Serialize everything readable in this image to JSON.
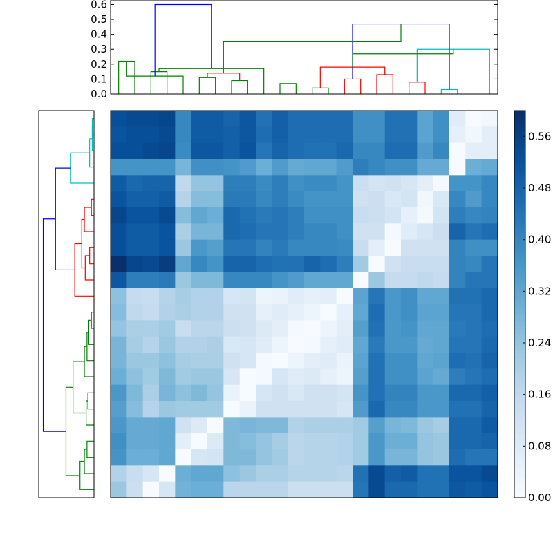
{
  "chart_data": [
    {
      "type": "dendrogram",
      "orientation": "top",
      "title": "",
      "xlabel": "",
      "ylabel": "",
      "ylim": [
        0,
        0.63
      ],
      "yticks": [
        "0.0",
        "0.1",
        "0.2",
        "0.3",
        "0.4",
        "0.5",
        "0.6"
      ],
      "leaf_count": 24,
      "cluster_colors": {
        "green": "#008000",
        "red": "#ff0000",
        "cyan": "#00bfbf",
        "root": "#0000ff"
      },
      "merges": [
        {
          "left": 0,
          "right": 1,
          "height": 0.22,
          "color": "green"
        },
        {
          "left": 2,
          "right": 3,
          "height": 0.15,
          "color": "green"
        },
        {
          "left": 5,
          "right": 6,
          "height": 0.11,
          "color": "green"
        },
        {
          "left": 7,
          "right": 8,
          "height": 0.09,
          "color": "green"
        },
        {
          "left": 10,
          "right": 11,
          "height": 0.07,
          "color": "green"
        },
        {
          "left": 12,
          "right": 13,
          "height": 0.04,
          "color": "green"
        },
        {
          "left": 16,
          "right": 17,
          "height": 0.13,
          "color": "red"
        },
        {
          "left": 18,
          "right": 19,
          "height": 0.08,
          "color": "red"
        },
        {
          "left": 20,
          "right": 21,
          "height": 0.03,
          "color": "cyan"
        },
        {
          "left": 14,
          "right": 15,
          "height": 0.1,
          "color": "red"
        },
        {
          "left": 26,
          "right": 27,
          "height": 0.14,
          "color": "red"
        },
        {
          "left": 29,
          "right": 30,
          "height": 0.18,
          "color": "red"
        },
        {
          "left": 31,
          "right": 23,
          "height": 0.3,
          "color": "cyan"
        },
        {
          "left": 32,
          "right": 33,
          "height": 0.47,
          "color": "root"
        },
        {
          "left": 24,
          "right": 4,
          "height": 0.12,
          "color": "green"
        },
        {
          "left": 25,
          "right": 9,
          "height": 0.17,
          "color": "green"
        },
        {
          "left": 35,
          "right": 36,
          "height": 0.27,
          "color": "green"
        },
        {
          "left": 34,
          "right": 37,
          "height": 0.35,
          "color": "green"
        },
        {
          "left": 38,
          "right": 39,
          "height": 0.6,
          "color": "root"
        }
      ]
    },
    {
      "type": "dendrogram",
      "orientation": "left",
      "title": "",
      "xlabel": "",
      "ylabel": "",
      "leaf_count": 24,
      "max_height": 0.6,
      "axis_labels_shown": false,
      "cluster_colors": {
        "green": "#008000",
        "red": "#ff0000",
        "cyan": "#00bfbf",
        "root": "#0000ff"
      },
      "merges": [
        {
          "left": 0,
          "right": 1,
          "height": 0.02,
          "color": "cyan"
        },
        {
          "left": 24,
          "right": 2,
          "height": 0.02,
          "color": "cyan"
        },
        {
          "left": 25,
          "right": 3,
          "height": 0.05,
          "color": "cyan"
        },
        {
          "left": 26,
          "right": 4,
          "height": 0.27,
          "color": "cyan"
        },
        {
          "left": 5,
          "right": 6,
          "height": 0.03,
          "color": "red"
        },
        {
          "left": 28,
          "right": 7,
          "height": 0.11,
          "color": "red"
        },
        {
          "left": 8,
          "right": 9,
          "height": 0.05,
          "color": "red"
        },
        {
          "left": 30,
          "right": 10,
          "height": 0.1,
          "color": "red"
        },
        {
          "left": 29,
          "right": 31,
          "height": 0.14,
          "color": "red"
        },
        {
          "left": 11,
          "right": 32,
          "height": 0.22,
          "color": "red"
        },
        {
          "left": 27,
          "right": 33,
          "height": 0.44,
          "color": "root"
        },
        {
          "left": 12,
          "right": 13,
          "height": 0.03,
          "color": "green"
        },
        {
          "left": 14,
          "right": 35,
          "height": 0.06,
          "color": "green"
        },
        {
          "left": 36,
          "right": 15,
          "height": 0.08,
          "color": "green"
        },
        {
          "left": 37,
          "right": 16,
          "height": 0.11,
          "color": "green"
        },
        {
          "left": 17,
          "right": 18,
          "height": 0.07,
          "color": "green"
        },
        {
          "left": 39,
          "right": 19,
          "height": 0.09,
          "color": "green"
        },
        {
          "left": 38,
          "right": 40,
          "height": 0.24,
          "color": "green"
        },
        {
          "left": 20,
          "right": 21,
          "height": 0.08,
          "color": "green"
        },
        {
          "left": 42,
          "right": 22,
          "height": 0.11,
          "color": "green"
        },
        {
          "left": 43,
          "right": 23,
          "height": 0.16,
          "color": "green"
        },
        {
          "left": 41,
          "right": 44,
          "height": 0.32,
          "color": "green"
        },
        {
          "left": 34,
          "right": 45,
          "height": 0.58,
          "color": "root"
        }
      ]
    },
    {
      "type": "heatmap",
      "title": "",
      "xlabel": "",
      "ylabel": "",
      "rows": 24,
      "cols": 24,
      "colormap": "Blues",
      "vmin": 0.0,
      "vmax": 0.6,
      "colormap_stops": [
        "#f7fbff",
        "#deebf7",
        "#c6dbef",
        "#9ecae1",
        "#6baed6",
        "#4292c6",
        "#2171b5",
        "#08519c",
        "#08306b"
      ],
      "values": [
        [
          0.53,
          0.54,
          0.54,
          0.55,
          0.4,
          0.5,
          0.5,
          0.48,
          0.51,
          0.45,
          0.49,
          0.46,
          0.46,
          0.46,
          0.46,
          0.38,
          0.38,
          0.45,
          0.45,
          0.33,
          0.38,
          0.07,
          0.0,
          0.02
        ],
        [
          0.52,
          0.53,
          0.53,
          0.54,
          0.4,
          0.5,
          0.5,
          0.49,
          0.51,
          0.46,
          0.49,
          0.46,
          0.46,
          0.46,
          0.46,
          0.38,
          0.38,
          0.45,
          0.45,
          0.33,
          0.38,
          0.05,
          0.02,
          0.06
        ],
        [
          0.53,
          0.53,
          0.54,
          0.55,
          0.39,
          0.51,
          0.51,
          0.49,
          0.52,
          0.44,
          0.48,
          0.46,
          0.45,
          0.45,
          0.47,
          0.4,
          0.4,
          0.46,
          0.46,
          0.35,
          0.4,
          0.0,
          0.06,
          0.06
        ],
        [
          0.37,
          0.37,
          0.37,
          0.37,
          0.28,
          0.38,
          0.38,
          0.37,
          0.35,
          0.3,
          0.35,
          0.31,
          0.32,
          0.32,
          0.35,
          0.42,
          0.4,
          0.38,
          0.38,
          0.31,
          0.31,
          0.0,
          0.3,
          0.31
        ],
        [
          0.5,
          0.47,
          0.48,
          0.48,
          0.16,
          0.24,
          0.24,
          0.42,
          0.42,
          0.39,
          0.42,
          0.38,
          0.39,
          0.39,
          0.37,
          0.13,
          0.11,
          0.12,
          0.1,
          0.06,
          0.01,
          0.37,
          0.37,
          0.4
        ],
        [
          0.52,
          0.49,
          0.49,
          0.5,
          0.18,
          0.26,
          0.26,
          0.43,
          0.43,
          0.4,
          0.42,
          0.39,
          0.37,
          0.37,
          0.37,
          0.12,
          0.13,
          0.09,
          0.11,
          0.02,
          0.09,
          0.4,
          0.35,
          0.4
        ],
        [
          0.55,
          0.52,
          0.52,
          0.54,
          0.26,
          0.32,
          0.3,
          0.47,
          0.45,
          0.43,
          0.44,
          0.42,
          0.38,
          0.38,
          0.38,
          0.14,
          0.13,
          0.11,
          0.05,
          0.01,
          0.11,
          0.42,
          0.4,
          0.41
        ],
        [
          0.53,
          0.5,
          0.5,
          0.52,
          0.2,
          0.28,
          0.28,
          0.47,
          0.46,
          0.44,
          0.44,
          0.42,
          0.4,
          0.4,
          0.38,
          0.12,
          0.12,
          0.01,
          0.07,
          0.1,
          0.13,
          0.48,
          0.44,
          0.46
        ],
        [
          0.53,
          0.5,
          0.5,
          0.52,
          0.23,
          0.36,
          0.34,
          0.44,
          0.44,
          0.41,
          0.43,
          0.4,
          0.4,
          0.4,
          0.39,
          0.14,
          0.06,
          0.0,
          0.12,
          0.12,
          0.12,
          0.41,
          0.38,
          0.38
        ],
        [
          0.6,
          0.55,
          0.54,
          0.57,
          0.32,
          0.4,
          0.37,
          0.48,
          0.48,
          0.46,
          0.45,
          0.45,
          0.48,
          0.46,
          0.42,
          0.22,
          0.0,
          0.12,
          0.14,
          0.14,
          0.14,
          0.41,
          0.4,
          0.44
        ],
        [
          0.51,
          0.42,
          0.42,
          0.43,
          0.23,
          0.27,
          0.27,
          0.4,
          0.4,
          0.4,
          0.37,
          0.35,
          0.32,
          0.32,
          0.32,
          0.0,
          0.23,
          0.15,
          0.15,
          0.16,
          0.15,
          0.41,
          0.44,
          0.44
        ],
        [
          0.25,
          0.15,
          0.14,
          0.18,
          0.21,
          0.19,
          0.19,
          0.1,
          0.11,
          0.03,
          0.04,
          0.07,
          0.05,
          0.06,
          0.0,
          0.33,
          0.44,
          0.36,
          0.38,
          0.32,
          0.32,
          0.45,
          0.45,
          0.47
        ],
        [
          0.26,
          0.16,
          0.15,
          0.19,
          0.2,
          0.19,
          0.19,
          0.12,
          0.12,
          0.05,
          0.07,
          0.05,
          0.03,
          0.0,
          0.05,
          0.32,
          0.46,
          0.36,
          0.38,
          0.33,
          0.33,
          0.44,
          0.44,
          0.47
        ],
        [
          0.24,
          0.2,
          0.2,
          0.22,
          0.14,
          0.17,
          0.17,
          0.13,
          0.12,
          0.08,
          0.06,
          0.01,
          0.0,
          0.03,
          0.06,
          0.34,
          0.45,
          0.36,
          0.37,
          0.32,
          0.32,
          0.43,
          0.44,
          0.46
        ],
        [
          0.28,
          0.21,
          0.18,
          0.23,
          0.19,
          0.19,
          0.2,
          0.09,
          0.1,
          0.07,
          0.03,
          0.0,
          0.01,
          0.05,
          0.07,
          0.32,
          0.43,
          0.36,
          0.36,
          0.31,
          0.32,
          0.44,
          0.44,
          0.47
        ],
        [
          0.28,
          0.23,
          0.23,
          0.25,
          0.21,
          0.2,
          0.2,
          0.12,
          0.1,
          0.01,
          0.0,
          0.03,
          0.06,
          0.07,
          0.04,
          0.33,
          0.45,
          0.38,
          0.38,
          0.32,
          0.33,
          0.46,
          0.45,
          0.48
        ],
        [
          0.3,
          0.25,
          0.22,
          0.27,
          0.22,
          0.23,
          0.23,
          0.1,
          0.0,
          0.01,
          0.1,
          0.07,
          0.08,
          0.05,
          0.03,
          0.34,
          0.45,
          0.38,
          0.38,
          0.33,
          0.31,
          0.42,
          0.44,
          0.46
        ],
        [
          0.36,
          0.27,
          0.2,
          0.28,
          0.25,
          0.27,
          0.24,
          0.04,
          0.0,
          0.1,
          0.12,
          0.09,
          0.12,
          0.12,
          0.11,
          0.37,
          0.45,
          0.41,
          0.41,
          0.36,
          0.36,
          0.47,
          0.47,
          0.49
        ],
        [
          0.34,
          0.26,
          0.18,
          0.23,
          0.22,
          0.22,
          0.22,
          0.0,
          0.04,
          0.12,
          0.12,
          0.12,
          0.12,
          0.12,
          0.1,
          0.35,
          0.47,
          0.4,
          0.4,
          0.36,
          0.36,
          0.45,
          0.45,
          0.48
        ],
        [
          0.36,
          0.31,
          0.31,
          0.32,
          0.12,
          0.08,
          0.0,
          0.27,
          0.28,
          0.27,
          0.27,
          0.19,
          0.2,
          0.2,
          0.2,
          0.22,
          0.34,
          0.28,
          0.27,
          0.23,
          0.21,
          0.47,
          0.47,
          0.5
        ],
        [
          0.38,
          0.31,
          0.31,
          0.32,
          0.06,
          0.0,
          0.08,
          0.27,
          0.26,
          0.24,
          0.21,
          0.17,
          0.18,
          0.18,
          0.19,
          0.22,
          0.36,
          0.3,
          0.3,
          0.24,
          0.23,
          0.47,
          0.47,
          0.48
        ],
        [
          0.37,
          0.3,
          0.3,
          0.32,
          0.0,
          0.1,
          0.11,
          0.27,
          0.27,
          0.24,
          0.22,
          0.17,
          0.18,
          0.18,
          0.19,
          0.22,
          0.36,
          0.28,
          0.28,
          0.24,
          0.23,
          0.46,
          0.44,
          0.44
        ],
        [
          0.19,
          0.14,
          0.1,
          0.0,
          0.3,
          0.32,
          0.32,
          0.25,
          0.23,
          0.2,
          0.2,
          0.18,
          0.18,
          0.18,
          0.17,
          0.45,
          0.54,
          0.49,
          0.5,
          0.45,
          0.45,
          0.52,
          0.52,
          0.54
        ],
        [
          0.23,
          0.13,
          0.0,
          0.1,
          0.29,
          0.3,
          0.3,
          0.17,
          0.17,
          0.17,
          0.17,
          0.13,
          0.13,
          0.13,
          0.13,
          0.44,
          0.54,
          0.47,
          0.47,
          0.45,
          0.45,
          0.51,
          0.5,
          0.52
        ]
      ]
    },
    {
      "type": "colorbar",
      "title": "",
      "vmin": 0.0,
      "vmax": 0.6,
      "ticks": [
        0.0,
        0.08,
        0.16,
        0.24,
        0.32,
        0.4,
        0.48,
        0.56
      ],
      "tick_labels": [
        "0.00",
        "0.08",
        "0.16",
        "0.24",
        "0.32",
        "0.40",
        "0.48",
        "0.56"
      ]
    }
  ]
}
